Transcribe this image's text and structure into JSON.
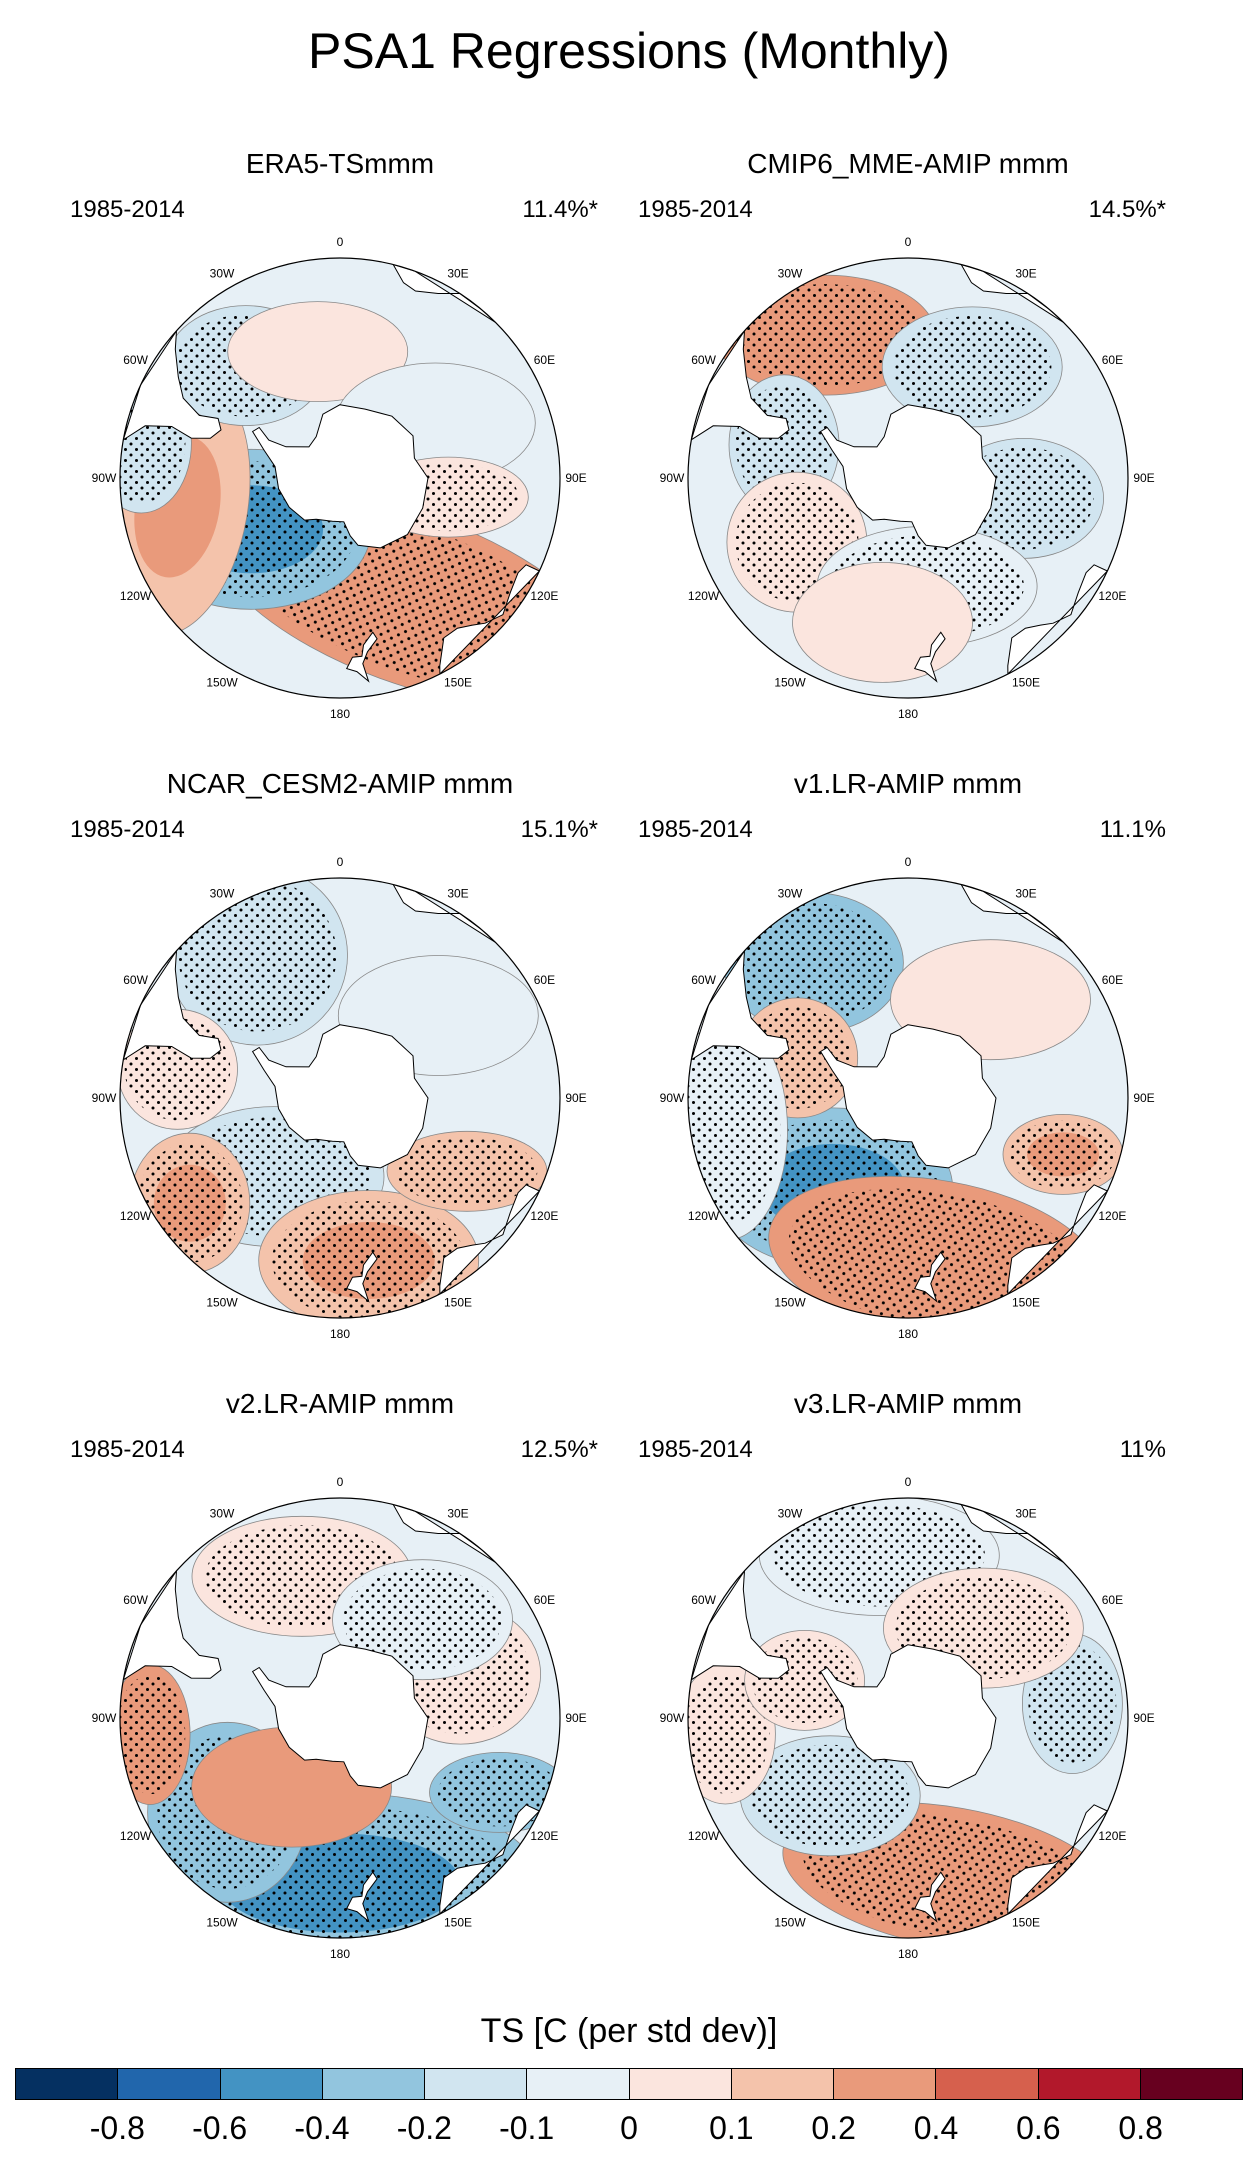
{
  "title": "PSA1 Regressions (Monthly)",
  "lon_labels": [
    "0",
    "30E",
    "60E",
    "90E",
    "120E",
    "150E",
    "180",
    "150W",
    "120W",
    "90W",
    "60W",
    "30W"
  ],
  "panels": [
    {
      "title": "ERA5-TSmmm",
      "period": "1985-2014",
      "percent": "11.4%*",
      "blobs": [
        {
          "lon": 150,
          "lat": -52,
          "sx": 210,
          "sy": 85,
          "rot": 20,
          "level": 0.3,
          "stip": true
        },
        {
          "lon": -120,
          "lat": -62,
          "sx": 120,
          "sy": 80,
          "rot": 0,
          "level": -0.3,
          "stip": true
        },
        {
          "lon": -100,
          "lat": -45,
          "sx": 70,
          "sy": 130,
          "rot": 10,
          "level": 0.2,
          "stip": false
        },
        {
          "lon": -80,
          "lat": -35,
          "sx": 50,
          "sy": 70,
          "rot": 0,
          "level": -0.15,
          "stip": true
        },
        {
          "lon": -40,
          "lat": -50,
          "sx": 80,
          "sy": 60,
          "rot": 0,
          "level": -0.12,
          "stip": true
        },
        {
          "lon": -10,
          "lat": -55,
          "sx": 90,
          "sy": 50,
          "rot": 0,
          "level": 0.08,
          "stip": false
        },
        {
          "lon": 60,
          "lat": -60,
          "sx": 100,
          "sy": 60,
          "rot": 0,
          "level": -0.08,
          "stip": false
        },
        {
          "lon": 100,
          "lat": -60,
          "sx": 80,
          "sy": 40,
          "rot": 0,
          "level": 0.08,
          "stip": true
        }
      ]
    },
    {
      "title": "CMIP6_MME-AMIP  mmm",
      "period": "1985-2014",
      "percent": "14.5%*",
      "blobs": [
        {
          "lon": -30,
          "lat": -45,
          "sx": 110,
          "sy": 60,
          "rot": 0,
          "level": 0.25,
          "stip": true
        },
        {
          "lon": -75,
          "lat": -55,
          "sx": 55,
          "sy": 70,
          "rot": 0,
          "level": -0.15,
          "stip": true
        },
        {
          "lon": 30,
          "lat": -55,
          "sx": 90,
          "sy": 60,
          "rot": 0,
          "level": -0.1,
          "stip": true
        },
        {
          "lon": 100,
          "lat": -58,
          "sx": 80,
          "sy": 60,
          "rot": 0,
          "level": -0.1,
          "stip": true
        },
        {
          "lon": -120,
          "lat": -55,
          "sx": 70,
          "sy": 70,
          "rot": 0,
          "level": 0.08,
          "stip": true
        },
        {
          "lon": 170,
          "lat": -60,
          "sx": 110,
          "sy": 60,
          "rot": 0,
          "level": -0.08,
          "stip": true
        },
        {
          "lon": -170,
          "lat": -50,
          "sx": 90,
          "sy": 60,
          "rot": 0,
          "level": 0.08,
          "stip": false
        }
      ]
    },
    {
      "title": "NCAR_CESM2-AMIP  mmm",
      "period": "1985-2014",
      "percent": "15.1%*",
      "blobs": [
        {
          "lon": -140,
          "lat": -62,
          "sx": 110,
          "sy": 70,
          "rot": 0,
          "level": -0.15,
          "stip": true
        },
        {
          "lon": 170,
          "lat": -45,
          "sx": 110,
          "sy": 70,
          "rot": 0,
          "level": 0.2,
          "stip": true
        },
        {
          "lon": -125,
          "lat": -40,
          "sx": 60,
          "sy": 70,
          "rot": 0,
          "level": 0.2,
          "stip": true
        },
        {
          "lon": -30,
          "lat": -45,
          "sx": 90,
          "sy": 90,
          "rot": 0,
          "level": -0.1,
          "stip": true
        },
        {
          "lon": -80,
          "lat": -45,
          "sx": 60,
          "sy": 60,
          "rot": 0,
          "level": 0.1,
          "stip": true
        },
        {
          "lon": 120,
          "lat": -50,
          "sx": 80,
          "sy": 40,
          "rot": 0,
          "level": 0.12,
          "stip": true
        },
        {
          "lon": 50,
          "lat": -55,
          "sx": 100,
          "sy": 60,
          "rot": 0,
          "level": -0.08,
          "stip": false
        }
      ]
    },
    {
      "title": "v1.LR-AMIP  mmm",
      "period": "1985-2014",
      "percent": "11.1%",
      "blobs": [
        {
          "lon": -140,
          "lat": -58,
          "sx": 120,
          "sy": 80,
          "rot": 0,
          "level": -0.3,
          "stip": true
        },
        {
          "lon": 170,
          "lat": -45,
          "sx": 170,
          "sy": 80,
          "rot": 10,
          "level": 0.3,
          "stip": true
        },
        {
          "lon": -35,
          "lat": -45,
          "sx": 90,
          "sy": 70,
          "rot": 0,
          "level": -0.25,
          "stip": true
        },
        {
          "lon": -70,
          "lat": -58,
          "sx": 60,
          "sy": 60,
          "rot": 0,
          "level": 0.15,
          "stip": true
        },
        {
          "lon": 110,
          "lat": -45,
          "sx": 60,
          "sy": 40,
          "rot": 0,
          "level": 0.2,
          "stip": true
        },
        {
          "lon": -100,
          "lat": -40,
          "sx": 60,
          "sy": 110,
          "rot": 0,
          "level": -0.08,
          "stip": true
        },
        {
          "lon": 40,
          "lat": -55,
          "sx": 100,
          "sy": 60,
          "rot": 0,
          "level": 0.06,
          "stip": false
        }
      ]
    },
    {
      "title": "v2.LR-AMIP  mmm",
      "period": "1985-2014",
      "percent": "12.5%*",
      "blobs": [
        {
          "lon": 180,
          "lat": -45,
          "sx": 200,
          "sy": 90,
          "rot": 0,
          "level": -0.3,
          "stip": true
        },
        {
          "lon": -130,
          "lat": -50,
          "sx": 80,
          "sy": 90,
          "rot": 0,
          "level": -0.25,
          "stip": true
        },
        {
          "lon": -145,
          "lat": -67,
          "sx": 100,
          "sy": 60,
          "rot": 0,
          "level": 0.3,
          "stip": false
        },
        {
          "lon": -95,
          "lat": -38,
          "sx": 40,
          "sy": 70,
          "rot": 0,
          "level": 0.25,
          "stip": true
        },
        {
          "lon": 115,
          "lat": -42,
          "sx": 70,
          "sy": 40,
          "rot": 0,
          "level": -0.2,
          "stip": true
        },
        {
          "lon": -15,
          "lat": -50,
          "sx": 110,
          "sy": 60,
          "rot": 0,
          "level": 0.08,
          "stip": true
        },
        {
          "lon": 70,
          "lat": -55,
          "sx": 80,
          "sy": 70,
          "rot": 0,
          "level": 0.06,
          "stip": true
        },
        {
          "lon": 40,
          "lat": -55,
          "sx": 90,
          "sy": 60,
          "rot": 0,
          "level": -0.08,
          "stip": true
        }
      ]
    },
    {
      "title": "v3.LR-AMIP  mmm",
      "period": "1985-2014",
      "percent": "11%",
      "blobs": [
        {
          "lon": 165,
          "lat": -45,
          "sx": 170,
          "sy": 70,
          "rot": 10,
          "level": 0.25,
          "stip": true
        },
        {
          "lon": -135,
          "lat": -60,
          "sx": 90,
          "sy": 60,
          "rot": 0,
          "level": -0.15,
          "stip": true
        },
        {
          "lon": -95,
          "lat": -40,
          "sx": 50,
          "sy": 70,
          "rot": 0,
          "level": 0.1,
          "stip": true
        },
        {
          "lon": -10,
          "lat": -45,
          "sx": 120,
          "sy": 60,
          "rot": 0,
          "level": -0.08,
          "stip": true
        },
        {
          "lon": 85,
          "lat": -45,
          "sx": 50,
          "sy": 70,
          "rot": 0,
          "level": -0.1,
          "stip": true
        },
        {
          "lon": 40,
          "lat": -58,
          "sx": 100,
          "sy": 60,
          "rot": 0,
          "level": 0.06,
          "stip": true
        },
        {
          "lon": -70,
          "lat": -60,
          "sx": 60,
          "sy": 50,
          "rot": 0,
          "level": 0.08,
          "stip": true
        }
      ]
    }
  ],
  "colorbar": {
    "title": "TS [C (per std dev)]",
    "colors": [
      "#053061",
      "#2166ac",
      "#4393c3",
      "#92c5de",
      "#d1e5f0",
      "#e7f0f6",
      "#fbe5de",
      "#f4c3ab",
      "#e99a7b",
      "#d6604d",
      "#b2182b",
      "#67001f"
    ],
    "labels": [
      "-0.8",
      "-0.6",
      "-0.4",
      "-0.2",
      "-0.1",
      "0",
      "0.1",
      "0.2",
      "0.4",
      "0.6",
      "0.8"
    ]
  }
}
